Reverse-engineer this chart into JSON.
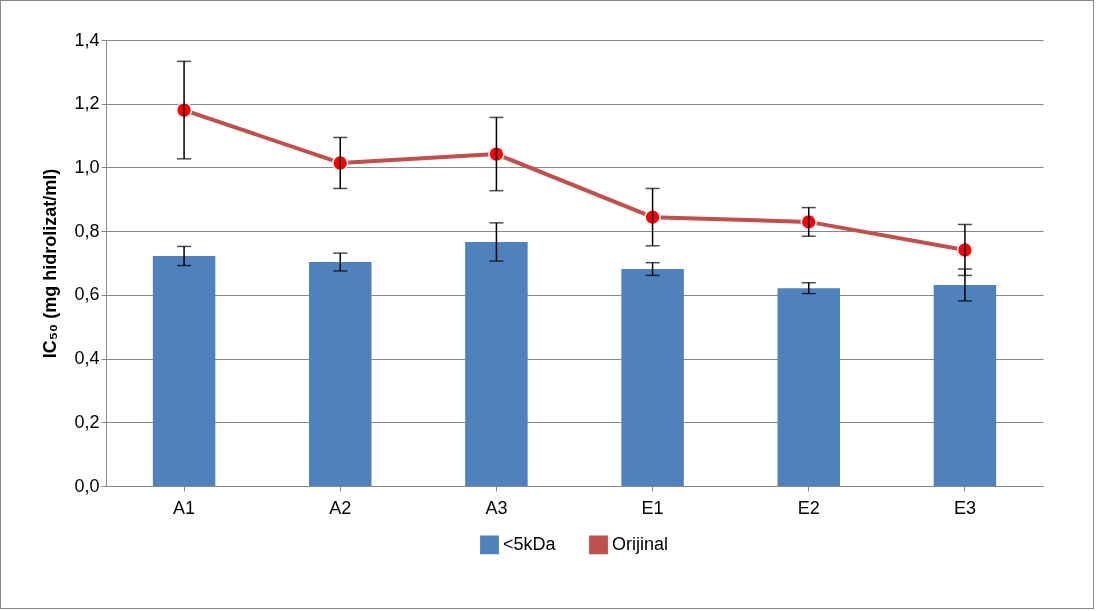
{
  "chart_data": {
    "type": "bar",
    "ylabel": "IC₅₀ (mg hidrolizat/ml)",
    "categories": [
      "A1",
      "A2",
      "A3",
      "E1",
      "E2",
      "E3"
    ],
    "series": [
      {
        "name": "<5kDa",
        "color": "#4f81bd",
        "values": [
          0.722,
          0.703,
          0.766,
          0.681,
          0.621,
          0.631
        ],
        "errors": [
          0.03,
          0.028,
          0.06,
          0.02,
          0.017,
          0.05
        ]
      },
      {
        "name": "Orijinal",
        "type": "line",
        "color": "#c0504d",
        "values": [
          1.18,
          1.014,
          1.042,
          0.844,
          0.829,
          0.741
        ],
        "errors": [
          0.153,
          0.08,
          0.115,
          0.09,
          0.045,
          0.08
        ]
      }
    ],
    "ylim": [
      0,
      1.4
    ],
    "yticks": [
      {
        "value": 0,
        "label": "0,0"
      },
      {
        "value": 0.2,
        "label": "0,2"
      },
      {
        "value": 0.4,
        "label": "0,4"
      },
      {
        "value": 0.6,
        "label": "0,6"
      },
      {
        "value": 0.8,
        "label": "0,8"
      },
      {
        "value": 1.0,
        "label": "1,0"
      },
      {
        "value": 1.2,
        "label": "1,2"
      },
      {
        "value": 1.4,
        "label": "1,4"
      }
    ],
    "grid": "y",
    "legend": "bottom",
    "marker": "circle"
  }
}
